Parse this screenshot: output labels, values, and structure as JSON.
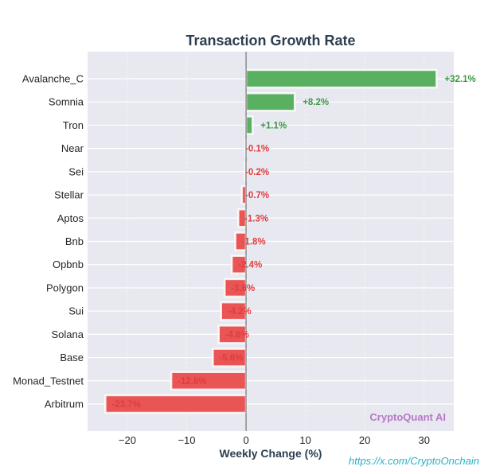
{
  "chart_data": {
    "type": "bar",
    "orientation": "horizontal",
    "title": "Transaction Growth Rate",
    "xlabel": "Weekly Change (%)",
    "ylabel": "",
    "categories": [
      "Avalanche_C",
      "Somnia",
      "Tron",
      "Near",
      "Sei",
      "Stellar",
      "Aptos",
      "Bnb",
      "Opbnb",
      "Polygon",
      "Sui",
      "Solana",
      "Base",
      "Monad_Testnet",
      "Arbitrum"
    ],
    "values": [
      32.1,
      8.2,
      1.1,
      -0.1,
      -0.2,
      -0.7,
      -1.3,
      -1.8,
      -2.4,
      -3.6,
      -4.2,
      -4.6,
      -5.6,
      -12.6,
      -23.7
    ],
    "data_labels": [
      "+32.1%",
      "+8.2%",
      "+1.1%",
      "-0.1%",
      "-0.2%",
      "-0.7%",
      "-1.3%",
      "-1.8%",
      "-2.4%",
      "-3.6%",
      "-4.2%",
      "-4.6%",
      "-5.6%",
      "-12.6%",
      "-23.7%"
    ],
    "xlim": [
      -26.7,
      35
    ],
    "xticks": [
      -20,
      -10,
      0,
      10,
      20,
      30
    ],
    "xtick_labels": [
      "−20",
      "−10",
      "0",
      "10",
      "20",
      "30"
    ],
    "grid": true,
    "legend": null,
    "colors": {
      "positive": "#4caa54",
      "negative": "#e84848",
      "positive_label": "#3c9a44",
      "negative_label": "#e03c3c",
      "plot_background": "#e8e8f0",
      "gridline": "#ffffff",
      "zero_line": "#5a5a5a"
    },
    "watermark": "CryptoQuant AI",
    "source": "https://x.com/CryptoOnchain"
  }
}
